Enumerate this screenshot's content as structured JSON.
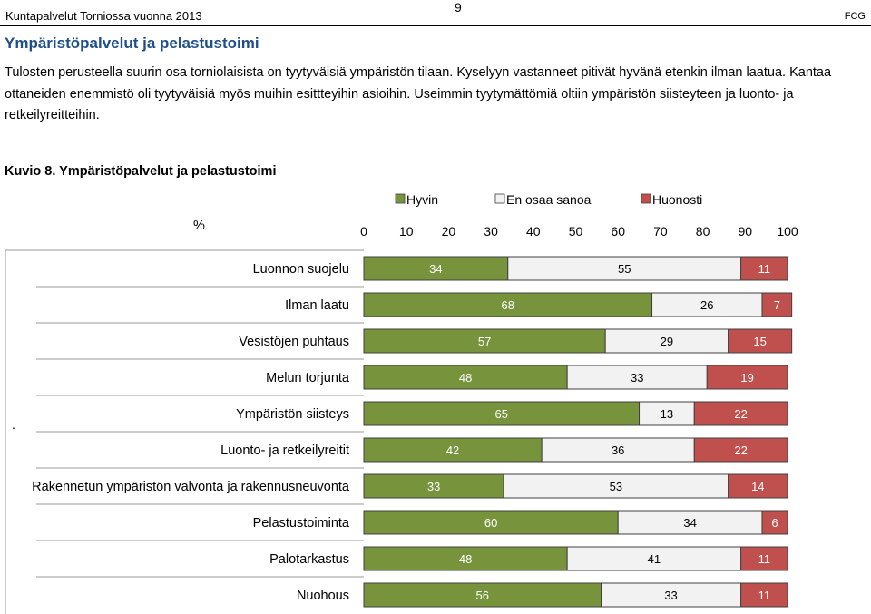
{
  "header": {
    "left": "Kuntapalvelut Torniossa vuonna 2013",
    "page_number": "9",
    "right": "FCG"
  },
  "section_title": "Ympäristöpalvelut ja pelastustoimi",
  "paragraph": "Tulosten perusteella suurin osa torniolaisista on tyytyväisiä ympäristön tilaan. Kyselyyn vastanneet pitivät hyvänä etenkin ilman laatua. Kantaa ottaneiden enemmistö oli tyytyväisiä myös muihin esittteyihin asioihin. Useimmin tyytymättömiä oltiin ympäristön siisteyteen ja luonto- ja retkeilyreitteihin.",
  "figure_label": "Kuvio 8. Ympäristöpalvelut ja pelastustoimi",
  "stray_mark": ".",
  "chart_data": {
    "type": "bar",
    "orientation": "horizontal",
    "stacked": true,
    "title": "Kuvio 8. Ympäristöpalvelut ja pelastustoimi",
    "xlabel": "%",
    "ylabel": "",
    "xlim": [
      0,
      100
    ],
    "xticks": [
      "0",
      "10",
      "20",
      "30",
      "40",
      "50",
      "60",
      "70",
      "80",
      "90",
      "100"
    ],
    "legend_position": "top",
    "categories": [
      "Luonnon suojelu",
      "Ilman laatu",
      "Vesistöjen puhtaus",
      "Melun torjunta",
      "Ympäristön siisteys",
      "Luonto- ja retkeilyreitit",
      "Rakennetun ympäristön valvonta ja rakennusneuvonta",
      "Pelastustoiminta",
      "Palotarkastus",
      "Nuohous"
    ],
    "series": [
      {
        "name": "Hyvin",
        "color": "#77933c",
        "label_color": "#ffffff",
        "values": [
          34,
          68,
          57,
          48,
          65,
          42,
          33,
          60,
          48,
          56
        ]
      },
      {
        "name": "En osaa sanoa",
        "color": "#f2f2f2",
        "label_color": "#000000",
        "values": [
          55,
          26,
          29,
          33,
          13,
          36,
          53,
          34,
          41,
          33
        ]
      },
      {
        "name": "Huonosti",
        "color": "#c0504d",
        "label_color": "#ffffff",
        "values": [
          11,
          7,
          15,
          19,
          22,
          22,
          14,
          6,
          11,
          11
        ]
      }
    ]
  }
}
